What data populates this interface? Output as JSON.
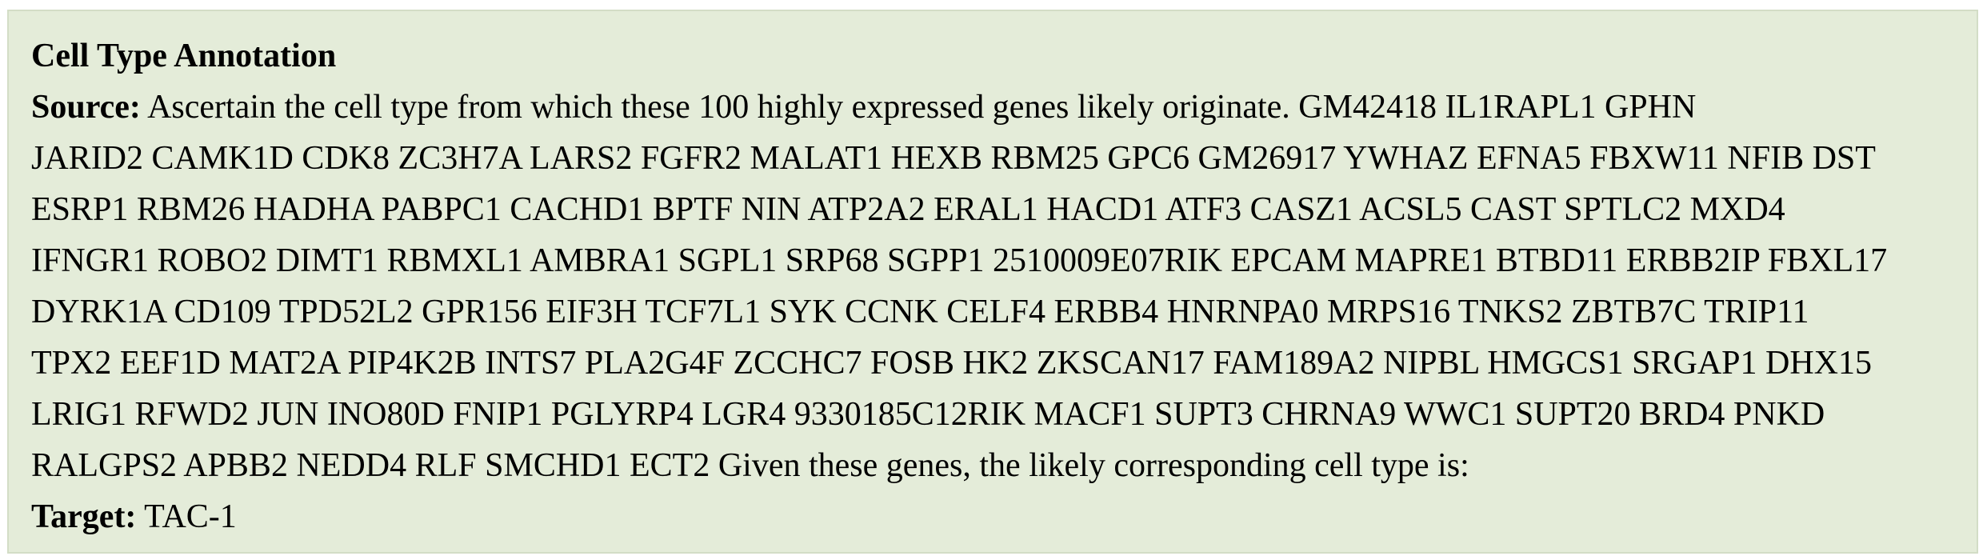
{
  "title": "Cell Type Annotation",
  "source": {
    "label": "Source:",
    "lines": [
      "Ascertain the cell type from which these 100 highly expressed genes likely originate. GM42418 IL1RAPL1 GPHN",
      "JARID2 CAMK1D CDK8 ZC3H7A LARS2 FGFR2 MALAT1 HEXB RBM25 GPC6 GM26917 YWHAZ EFNA5 FBXW11 NFIB DST",
      "ESRP1 RBM26 HADHA PABPC1 CACHD1 BPTF NIN ATP2A2 ERAL1 HACD1 ATF3 CASZ1 ACSL5 CAST SPTLC2 MXD4",
      "IFNGR1 ROBO2 DIMT1 RBMXL1 AMBRA1 SGPL1 SRP68 SGPP1 2510009E07RIK EPCAM MAPRE1 BTBD11 ERBB2IP FBXL17",
      "DYRK1A CD109 TPD52L2 GPR156 EIF3H TCF7L1 SYK CCNK CELF4 ERBB4 HNRNPA0 MRPS16 TNKS2 ZBTB7C TRIP11",
      "TPX2 EEF1D MAT2A PIP4K2B INTS7 PLA2G4F ZCCHC7 FOSB HK2 ZKSCAN17 FAM189A2 NIPBL HMGCS1 SRGAP1 DHX15",
      "LRIG1 RFWD2 JUN INO80D FNIP1 PGLYRP4 LGR4 9330185C12RIK MACF1 SUPT3 CHRNA9 WWC1 SUPT20 BRD4 PNKD",
      "RALGPS2 APBB2 NEDD4 RLF SMCHD1 ECT2 Given these genes, the likely corresponding cell type is:"
    ]
  },
  "target": {
    "label": "Target:",
    "value": "TAC-1"
  }
}
